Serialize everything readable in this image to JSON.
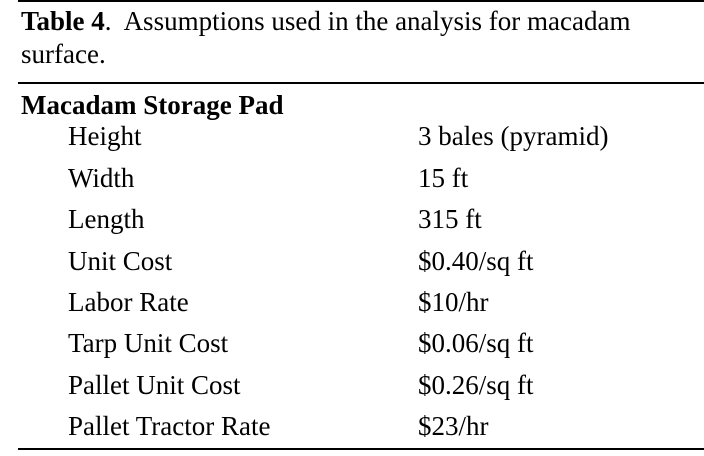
{
  "caption": {
    "label": "Table 4",
    "text": "Assumptions used in the analysis for macadam surface."
  },
  "section": {
    "title": "Macadam Storage Pad"
  },
  "rows": [
    {
      "label": "Height",
      "value": "3 bales (pyramid)"
    },
    {
      "label": "Width",
      "value": "15 ft"
    },
    {
      "label": "Length",
      "value": "315 ft"
    },
    {
      "label": "Unit Cost",
      "value": "$0.40/sq ft"
    },
    {
      "label": "Labor Rate",
      "value": "$10/hr"
    },
    {
      "label": "Tarp Unit Cost",
      "value": "$0.06/sq ft"
    },
    {
      "label": "Pallet Unit Cost",
      "value": "$0.26/sq ft"
    },
    {
      "label": "Pallet Tractor Rate",
      "value": "$23/hr"
    }
  ]
}
